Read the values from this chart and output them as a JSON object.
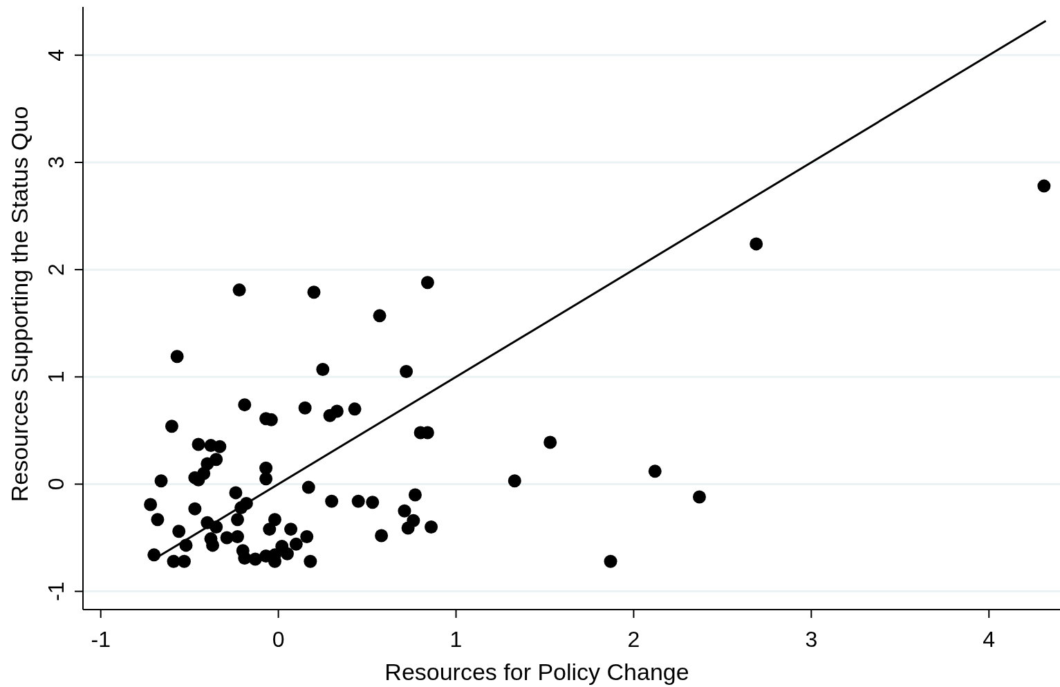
{
  "chart_data": {
    "type": "scatter",
    "xlabel": "Resources for Policy Change",
    "ylabel": "Resources Supporting the Status Quo",
    "xlim": [
      -1.1,
      4.4
    ],
    "ylim": [
      -1.17,
      4.45
    ],
    "xticks": [
      -1,
      0,
      1,
      2,
      3,
      4
    ],
    "yticks": [
      -1,
      0,
      1,
      2,
      3,
      4
    ],
    "grid": "y",
    "series": [
      {
        "color": "#000000",
        "marker": "circle",
        "x": [
          -0.19,
          -0.07,
          -0.04,
          0.15,
          -0.6,
          -0.45,
          -0.38,
          -0.33,
          -0.35,
          -0.4,
          -0.42,
          -0.47,
          -0.45,
          -0.07,
          -0.07,
          -0.66,
          -0.24,
          0.17,
          -0.72,
          -0.18,
          -0.21,
          -0.47,
          -0.23,
          -0.68,
          -0.4,
          -0.35,
          -0.02,
          -0.05,
          0.07,
          -0.56,
          0.16,
          -0.23,
          -0.38,
          -0.37,
          -0.29,
          -0.52,
          -0.2,
          0.1,
          0.02,
          0.05,
          -0.02,
          -0.07,
          -0.7,
          -0.59,
          -0.53,
          -0.19,
          -0.13,
          -0.02,
          0.18,
          0.29,
          0.33,
          0.43,
          0.8,
          0.84,
          0.3,
          0.45,
          0.53,
          0.77,
          0.71,
          0.76,
          0.73,
          0.86,
          0.58,
          -0.22,
          0.2,
          0.84,
          0.57,
          -0.57,
          0.25,
          0.72,
          1.53,
          1.33,
          2.12,
          2.37,
          1.87,
          2.69,
          4.31
        ],
        "values": [
          0.74,
          0.61,
          0.6,
          0.71,
          0.54,
          0.37,
          0.36,
          0.35,
          0.23,
          0.19,
          0.1,
          0.06,
          0.04,
          0.15,
          0.05,
          0.03,
          -0.08,
          -0.03,
          -0.19,
          -0.18,
          -0.22,
          -0.23,
          -0.33,
          -0.33,
          -0.36,
          -0.4,
          -0.33,
          -0.42,
          -0.42,
          -0.44,
          -0.49,
          -0.49,
          -0.51,
          -0.57,
          -0.5,
          -0.57,
          -0.62,
          -0.56,
          -0.58,
          -0.65,
          -0.66,
          -0.67,
          -0.66,
          -0.72,
          -0.72,
          -0.69,
          -0.7,
          -0.72,
          -0.72,
          0.64,
          0.68,
          0.7,
          0.48,
          0.48,
          -0.16,
          -0.16,
          -0.17,
          -0.1,
          -0.25,
          -0.34,
          -0.41,
          -0.4,
          -0.48,
          1.81,
          1.79,
          1.88,
          1.57,
          1.19,
          1.07,
          1.05,
          0.39,
          0.03,
          0.12,
          -0.12,
          -0.72,
          2.24,
          2.78
        ]
      },
      {
        "type": "line",
        "color": "#000000",
        "line_style": "solid",
        "x": [
          -0.7,
          4.32
        ],
        "values": [
          -0.7,
          4.32
        ]
      }
    ]
  }
}
